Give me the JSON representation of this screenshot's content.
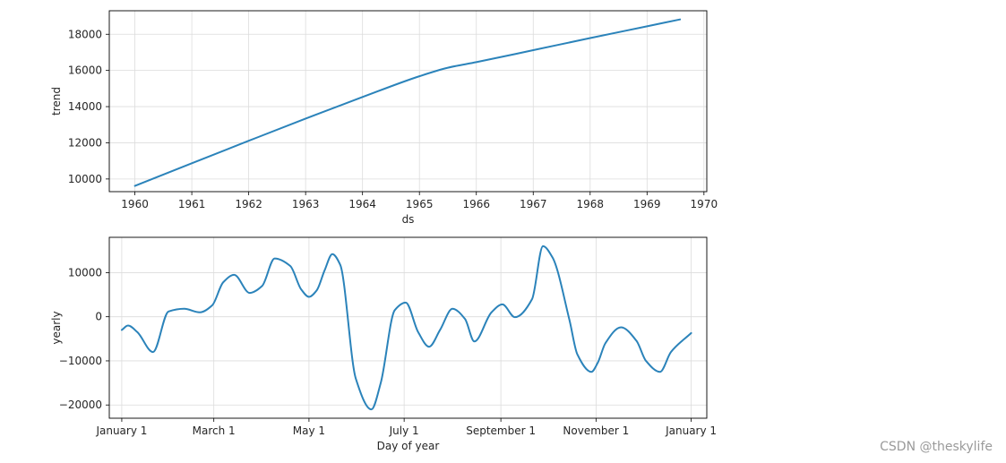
{
  "chart_data": [
    {
      "type": "line",
      "xlabel": "ds",
      "ylabel": "trend",
      "xlim": [
        1959.55,
        1970.05
      ],
      "ylim": [
        9300,
        19300
      ],
      "xticks": [
        1960,
        1961,
        1962,
        1963,
        1964,
        1965,
        1966,
        1967,
        1968,
        1969,
        1970
      ],
      "xtick_labels": [
        "1960",
        "1961",
        "1962",
        "1963",
        "1964",
        "1965",
        "1966",
        "1967",
        "1968",
        "1969",
        "1970"
      ],
      "yticks": [
        10000,
        12000,
        14000,
        16000,
        18000
      ],
      "ytick_labels": [
        "10000",
        "12000",
        "14000",
        "16000",
        "18000"
      ],
      "grid": true,
      "color": "#2b83ba",
      "series": [
        {
          "x": [
            1960,
            1961,
            1962,
            1963,
            1964,
            1965,
            1965.5,
            1966,
            1967,
            1968,
            1969,
            1969.58
          ],
          "values": [
            9620,
            10870,
            12110,
            13340,
            14530,
            15680,
            16150,
            16460,
            17120,
            17790,
            18440,
            18820
          ]
        }
      ]
    },
    {
      "type": "line",
      "xlabel": "Day of year",
      "ylabel": "yearly",
      "xlim": [
        -8,
        375
      ],
      "ylim": [
        -23000,
        18000
      ],
      "xticks": [
        0,
        59,
        120,
        181,
        243,
        304,
        365
      ],
      "xtick_labels": [
        "January 1",
        "March 1",
        "May 1",
        "July 1",
        "September 1",
        "November 1",
        "January 1"
      ],
      "yticks": [
        -20000,
        -10000,
        0,
        10000
      ],
      "ytick_labels": [
        "−20000",
        "−10000",
        "0",
        "10000"
      ],
      "grid": true,
      "color": "#2b83ba",
      "series": [
        {
          "x": [
            0,
            4,
            10,
            20,
            30,
            40,
            50,
            58,
            65,
            72,
            82,
            90,
            98,
            108,
            115,
            120,
            125,
            130,
            135,
            140,
            150,
            160,
            166,
            175,
            182,
            190,
            197,
            204,
            212,
            220,
            226,
            237,
            244,
            252,
            263,
            270,
            276,
            287,
            292,
            301,
            305,
            310,
            320,
            330,
            336,
            345,
            352,
            365
          ],
          "values": [
            -3000,
            -2000,
            -3500,
            -8000,
            1200,
            1800,
            1000,
            2600,
            7800,
            9500,
            5400,
            7000,
            13200,
            11500,
            6200,
            4500,
            6000,
            10500,
            14200,
            11800,
            -14000,
            -21000,
            -15000,
            1500,
            3200,
            -3500,
            -6800,
            -3000,
            1800,
            -500,
            -5600,
            1000,
            2800,
            -100,
            4000,
            16000,
            13500,
            -800,
            -8500,
            -12500,
            -10500,
            -6000,
            -2400,
            -5500,
            -10000,
            -12500,
            -8000,
            -3700
          ]
        }
      ]
    }
  ],
  "watermark": "CSDN @theskylife"
}
